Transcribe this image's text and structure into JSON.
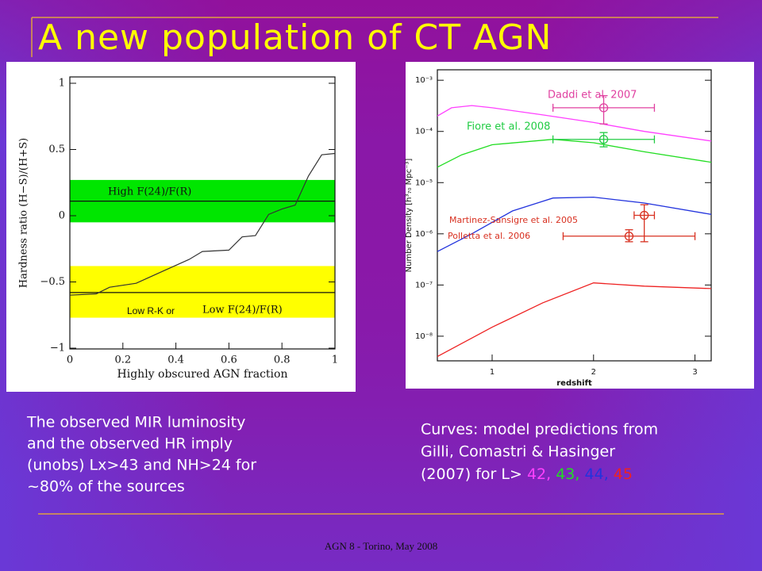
{
  "title": "A new population of CT AGN",
  "caption_left": [
    "The observed MIR luminosity",
    "and the observed HR imply",
    "(unobs) Lx>43 and NH>24 for",
    "~80% of the sources"
  ],
  "caption_right": {
    "lines": [
      "Curves: model predictions  from",
      "Gilli, Comastri & Hasinger"
    ],
    "prefix": "(2007) for  L>",
    "separator": ","
  },
  "footer": "AGN 8 - Torino, May 2008",
  "chart_data": [
    {
      "type": "line",
      "xlabel": "Highly obscured AGN fraction",
      "ylabel": "Hardness ratio (H−S)/(H+S)",
      "xlim": [
        0,
        1
      ],
      "ylim": [
        -1,
        1
      ],
      "xticks": [
        0,
        0.2,
        0.4,
        0.6,
        0.8,
        1
      ],
      "yticks": [
        {
          "value": -1,
          "label": "−1"
        },
        {
          "value": -0.5,
          "label": "−0.5"
        },
        0,
        0.5,
        1
      ],
      "bands": [
        {
          "ymin": -0.05,
          "ymax": 0.27,
          "color": "#00e600"
        },
        {
          "ymin": -0.77,
          "ymax": -0.38,
          "color": "#ffff00"
        }
      ],
      "hlines": [
        0.11,
        -0.58
      ],
      "annotations": [
        "High F(24)/F(R)",
        "Low R-K or",
        "Low F(24)/F(R)"
      ],
      "color": "#333333",
      "x": [
        0,
        0.1,
        0.15,
        0.25,
        0.35,
        0.45,
        0.5,
        0.6,
        0.65,
        0.7,
        0.75,
        0.8,
        0.85,
        0.9,
        0.95,
        1
      ],
      "values": [
        -0.6,
        -0.59,
        -0.54,
        -0.51,
        -0.42,
        -0.33,
        -0.27,
        -0.26,
        -0.16,
        -0.15,
        0.01,
        0.05,
        0.08,
        0.3,
        0.46,
        0.47
      ]
    },
    {
      "type": "line",
      "xlabel": "redshift",
      "ylabel": "Number Density [h³₇₀ Mpc⁻³]",
      "yscale": "log",
      "xlim": [
        0.46,
        3.16
      ],
      "ylim": [
        3.3e-09,
        0.0016
      ],
      "xticks": [
        1,
        2,
        3
      ],
      "yticks": [
        {
          "value": 1e-08,
          "label": "10⁻⁸"
        },
        {
          "value": 1e-07,
          "label": "10⁻⁷"
        },
        {
          "value": 1e-06,
          "label": "10⁻⁶"
        },
        {
          "value": 1e-05,
          "label": "10⁻⁵"
        },
        {
          "value": 0.0001,
          "label": "10⁻⁴"
        },
        {
          "value": 0.001,
          "label": "10⁻³"
        }
      ],
      "series": [
        {
          "name": "42",
          "color": "#ff40ff",
          "x": [
            0.46,
            0.6,
            0.8,
            1.0,
            1.5,
            2,
            2.5,
            3.16
          ],
          "values": [
            0.0002,
            0.00029,
            0.00032,
            0.00029,
            0.00021,
            0.00015,
            0.0001,
            6.5e-05
          ]
        },
        {
          "name": "43",
          "color": "#22dd22",
          "x": [
            0.46,
            0.7,
            1.0,
            1.6,
            2,
            2.5,
            3.16
          ],
          "values": [
            2e-05,
            3.5e-05,
            5.5e-05,
            7e-05,
            6e-05,
            4e-05,
            2.5e-05
          ]
        },
        {
          "name": "44",
          "color": "#2233dd",
          "x": [
            0.46,
            0.8,
            1.2,
            1.6,
            2,
            2.5,
            3.16
          ],
          "values": [
            4.5e-07,
            1e-06,
            2.8e-06,
            5e-06,
            5.2e-06,
            4e-06,
            2.4e-06
          ]
        },
        {
          "name": "45",
          "color": "#ee2222",
          "x": [
            0.46,
            1,
            1.5,
            2,
            2.5,
            3.16
          ],
          "values": [
            4e-09,
            1.5e-08,
            4.5e-08,
            1.1e-07,
            9.5e-08,
            8.5e-08
          ]
        }
      ],
      "points": [
        {
          "name": "Daddi et al. 2007",
          "color": "#e040a0",
          "x": 2.1,
          "y": 0.00029,
          "xmin": 1.6,
          "xmax": 2.6,
          "ymin": 0.00014,
          "ymax": 0.0005
        },
        {
          "name": "Fiore et al.  2008",
          "color": "#22cc44",
          "x": 2.1,
          "y": 7e-05,
          "xmin": 1.6,
          "xmax": 2.6,
          "ymin": 5e-05,
          "ymax": 9.5e-05
        },
        {
          "name": "Martinez-Sansigre et al. 2005",
          "color": "#d83020",
          "x": 2.5,
          "y": 2.3e-06,
          "xmin": 2.4,
          "xmax": 2.6,
          "ymin": 7e-07,
          "ymax": 3.7e-06
        },
        {
          "name": "Polletta et al. 2006",
          "color": "#d83020",
          "x": 2.35,
          "y": 9e-07,
          "xmin": 1.7,
          "xmax": 3.0,
          "ymin": 7e-07,
          "ymax": 1.2e-06
        }
      ]
    }
  ]
}
